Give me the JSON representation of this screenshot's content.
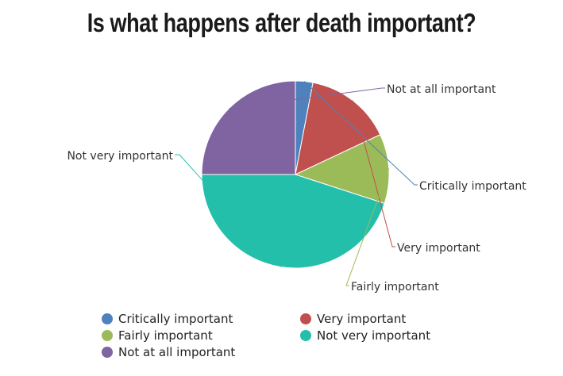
{
  "chart_data": {
    "type": "pie",
    "title": "Is what happens after death important?",
    "slices": [
      {
        "label": "Critically important",
        "value": 3,
        "color": "#4f81bd"
      },
      {
        "label": "Very important",
        "value": 15,
        "color": "#c0504d"
      },
      {
        "label": "Fairly important",
        "value": 12,
        "color": "#9bbb59"
      },
      {
        "label": "Not very important",
        "value": 45,
        "color": "#23bfaa"
      },
      {
        "label": "Not at all important",
        "value": 25,
        "color": "#8064a2"
      }
    ],
    "legend": {
      "placement": "bottom",
      "items": [
        "Critically important",
        "Very important",
        "Fairly important",
        "Not very important",
        "Not at all important"
      ]
    }
  }
}
